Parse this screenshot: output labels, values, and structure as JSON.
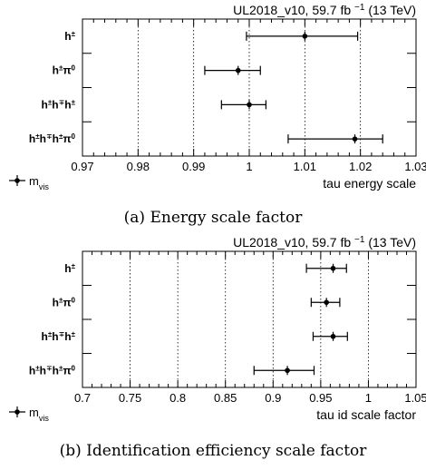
{
  "chart_data": [
    {
      "type": "scatter",
      "header": "UL2018_v10, 59.7 fb",
      "header_sup": "−1",
      "header_energy": "(13 TeV)",
      "xlabel": "tau energy scale",
      "xlim": [
        0.97,
        1.03
      ],
      "xticks": [
        "0.97",
        "0.98",
        "0.99",
        "1",
        "1.01",
        "1.02",
        "1.03"
      ],
      "x_dotted_lines": [
        0.98,
        0.99,
        1.0,
        1.01,
        1.02
      ],
      "legend": {
        "placement": "bottom-left",
        "label": "m",
        "sub": "vis"
      },
      "caption": "(a) Energy scale factor",
      "categories": [
        {
          "label": "h±",
          "value": 1.01,
          "err_low": 0.0105,
          "err_high": 0.0095
        },
        {
          "label": "h±π0",
          "value": 0.998,
          "err_low": 0.006,
          "err_high": 0.004
        },
        {
          "label": "h±h∓h±",
          "value": 1.0,
          "err_low": 0.005,
          "err_high": 0.003
        },
        {
          "label": "h±h∓h±π0",
          "value": 1.019,
          "err_low": 0.012,
          "err_high": 0.005
        }
      ]
    },
    {
      "type": "scatter",
      "header": "UL2018_v10, 59.7 fb",
      "header_sup": "−1",
      "header_energy": "(13 TeV)",
      "xlabel": "tau id scale factor",
      "xlim": [
        0.7,
        1.05
      ],
      "xticks": [
        "0.7",
        "0.75",
        "0.8",
        "0.85",
        "0.9",
        "0.95",
        "1",
        "1.05"
      ],
      "x_dotted_lines": [
        0.75,
        0.8,
        0.85,
        0.9,
        0.95,
        1.0
      ],
      "legend": {
        "placement": "bottom-left",
        "label": "m",
        "sub": "vis"
      },
      "caption": "(b) Identification efficiency scale factor",
      "categories": [
        {
          "label": "h±",
          "value": 0.963,
          "err_low": 0.028,
          "err_high": 0.014
        },
        {
          "label": "h±π0",
          "value": 0.956,
          "err_low": 0.016,
          "err_high": 0.014
        },
        {
          "label": "h±h∓h±",
          "value": 0.963,
          "err_low": 0.021,
          "err_high": 0.015
        },
        {
          "label": "h±h∓h±π0",
          "value": 0.915,
          "err_low": 0.035,
          "err_high": 0.028
        }
      ]
    }
  ]
}
